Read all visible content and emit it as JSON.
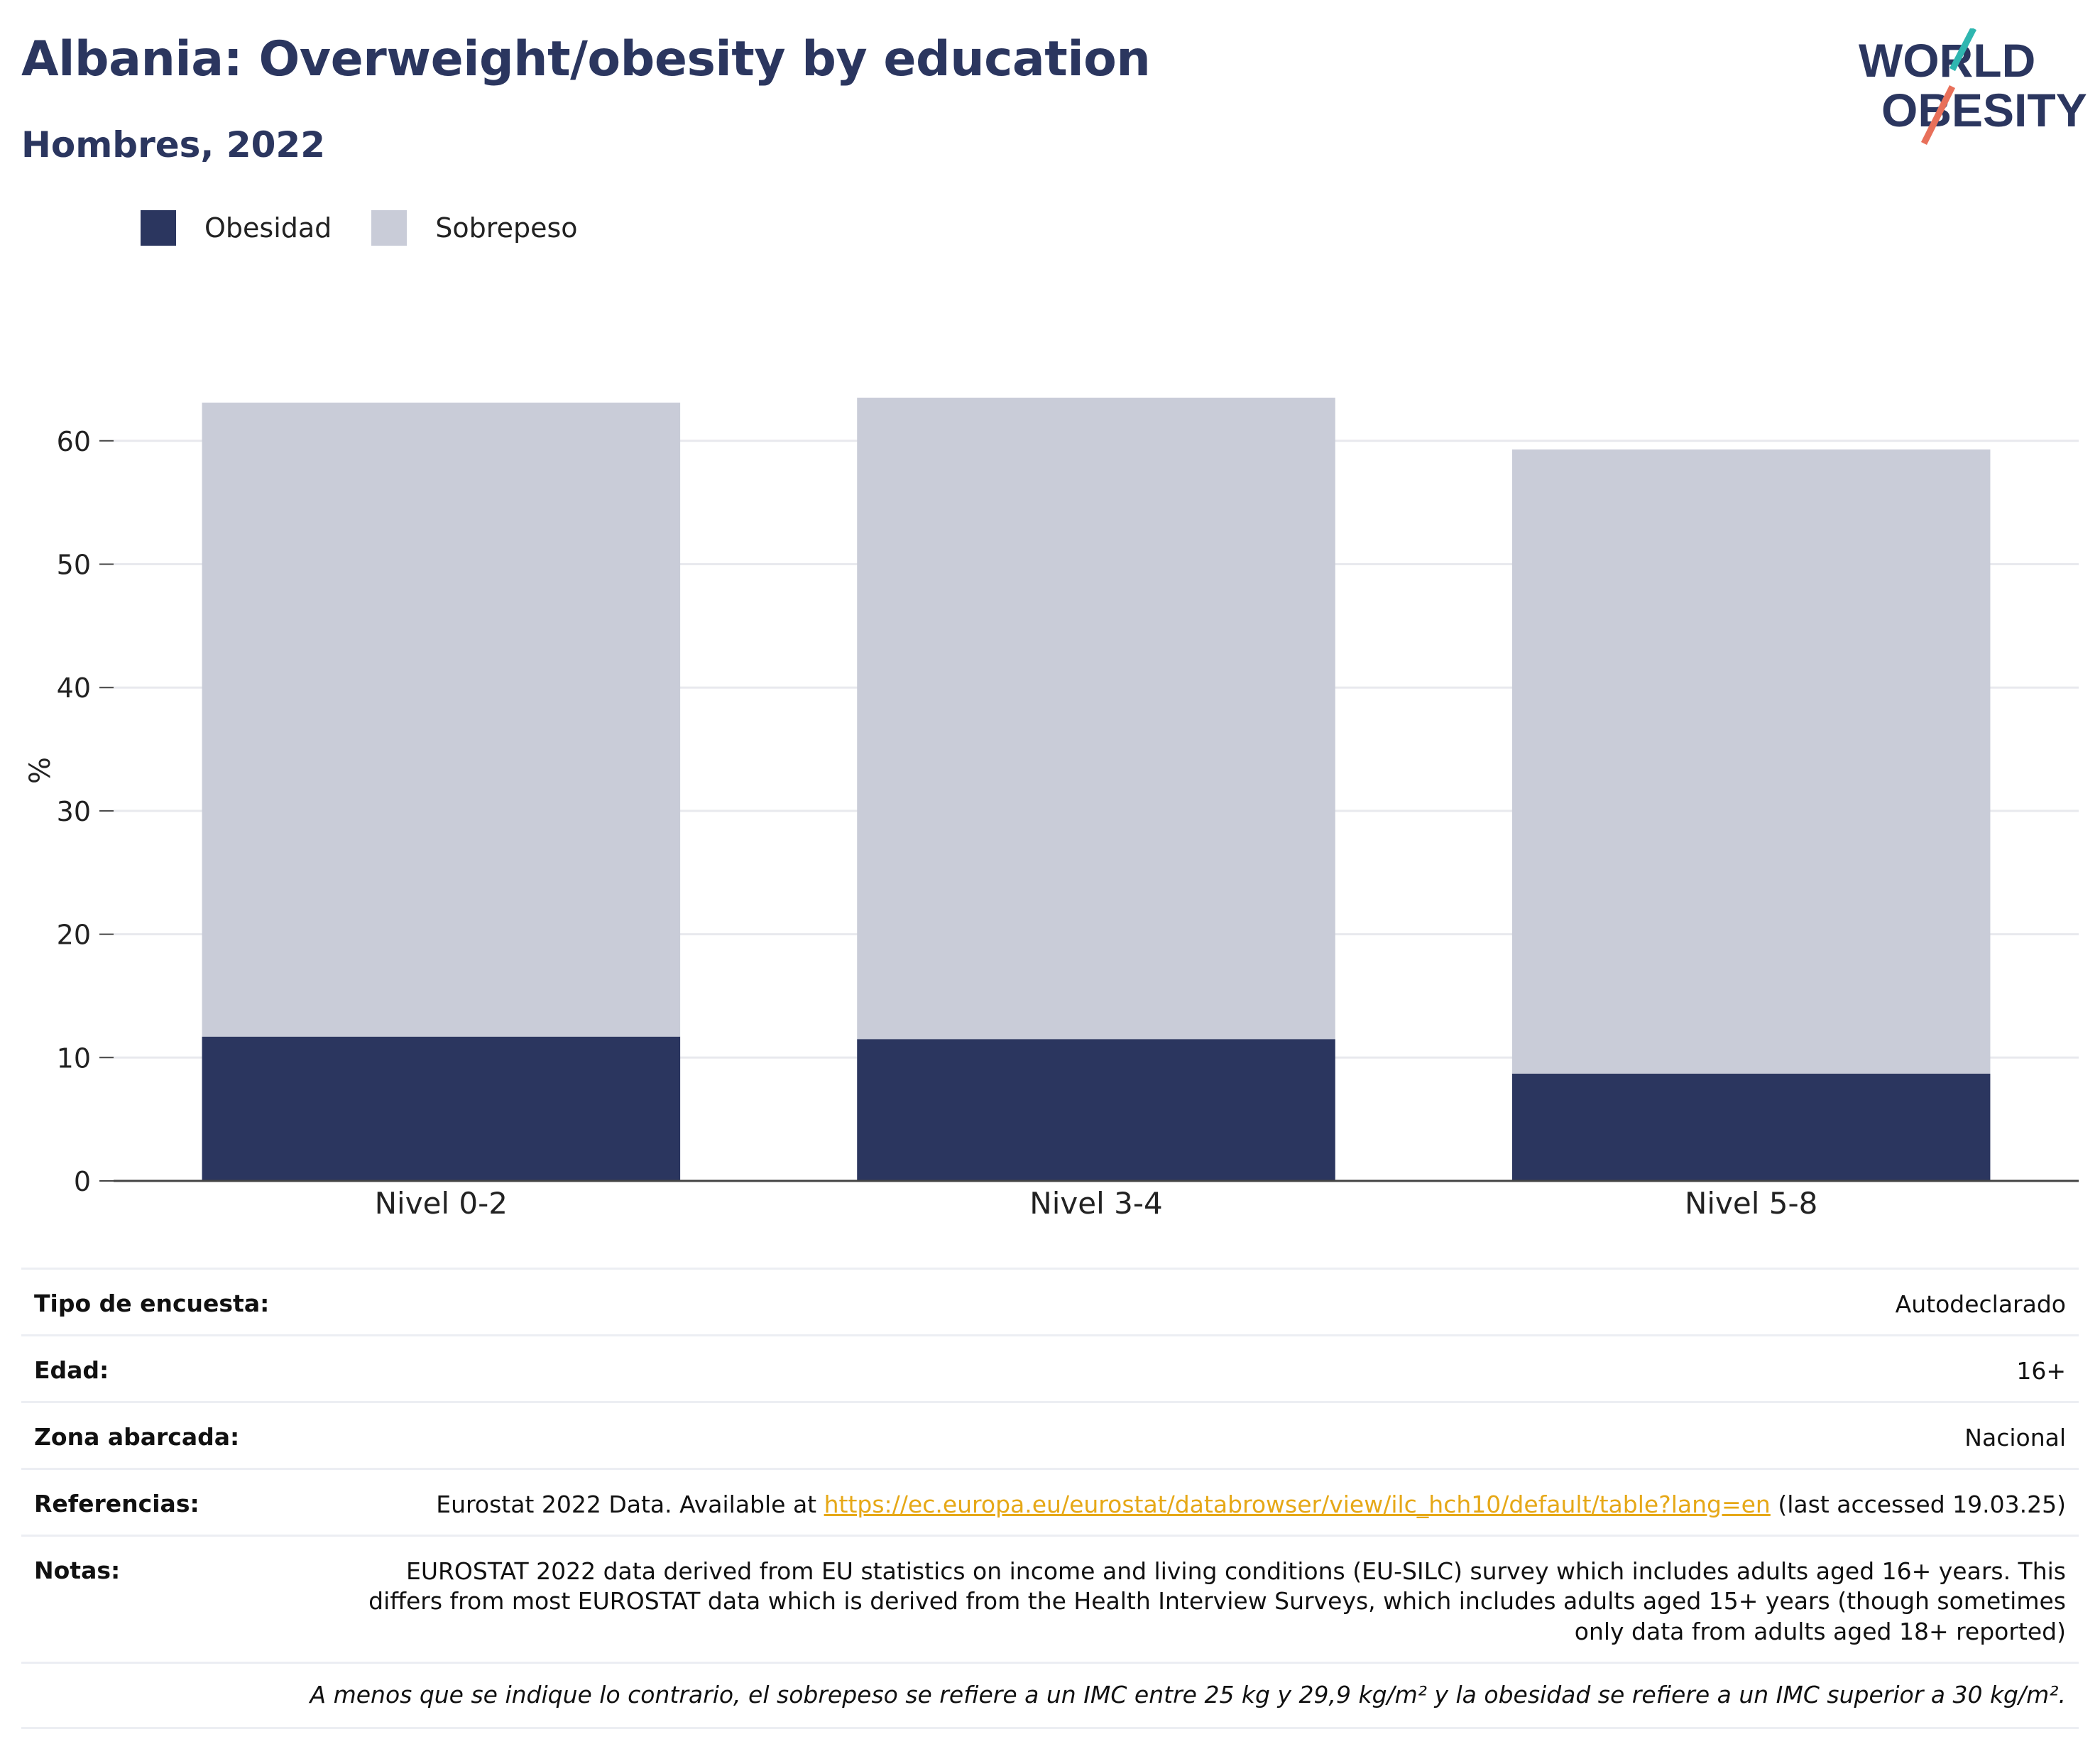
{
  "header": {
    "title": "Albania: Overweight/obesity by education",
    "subtitle": "Hombres, 2022"
  },
  "logo": {
    "line1": "WORLD",
    "line2": "OBESITY"
  },
  "colors": {
    "obesidad": "#2b365f",
    "sobrepeso": "#c9ccd8",
    "accent_teal": "#2fb6b0",
    "accent_coral": "#e8705a",
    "link": "#e6a817"
  },
  "legend": [
    {
      "label": "Obesidad",
      "color": "#2b365f"
    },
    {
      "label": "Sobrepeso",
      "color": "#c9ccd8"
    }
  ],
  "chart_data": {
    "type": "bar",
    "stacked": true,
    "categories": [
      "Nivel 0-2",
      "Nivel 3-4",
      "Nivel 5-8"
    ],
    "series": [
      {
        "name": "Obesidad",
        "values": [
          11.7,
          11.5,
          8.7
        ]
      },
      {
        "name": "Sobrepeso",
        "values": [
          51.4,
          52.0,
          50.6
        ]
      }
    ],
    "ylabel": "%",
    "ylim": [
      0,
      65
    ],
    "yticks": [
      0,
      10,
      20,
      30,
      40,
      50,
      60
    ],
    "grid": true,
    "legend_position": "top-left"
  },
  "meta": {
    "rows": [
      {
        "key": "Tipo de encuesta:",
        "value": "Autodeclarado"
      },
      {
        "key": "Edad:",
        "value": "16+"
      },
      {
        "key": "Zona abarcada:",
        "value": "Nacional"
      }
    ],
    "references": {
      "key": "Referencias:",
      "before": "Eurostat 2022 Data. Available at ",
      "link": "https://ec.europa.eu/eurostat/databrowser/view/ilc_hch10/default/table?lang=en",
      "after": " (last accessed 19.03.25)"
    },
    "notes": {
      "key": "Notas:",
      "value": "EUROSTAT 2022 data derived from EU statistics on income and living conditions (EU-SILC) survey which includes adults aged 16+ years. This differs from most EUROSTAT data which is derived from the Health Interview Surveys, which includes adults aged 15+ years (though sometimes only data from adults aged 18+ reported)"
    },
    "footnote": "A menos que se indique lo contrario, el sobrepeso se refiere a un IMC entre 25 kg y 29,9 kg/m² y la obesidad se refiere a un IMC superior a 30 kg/m²."
  }
}
